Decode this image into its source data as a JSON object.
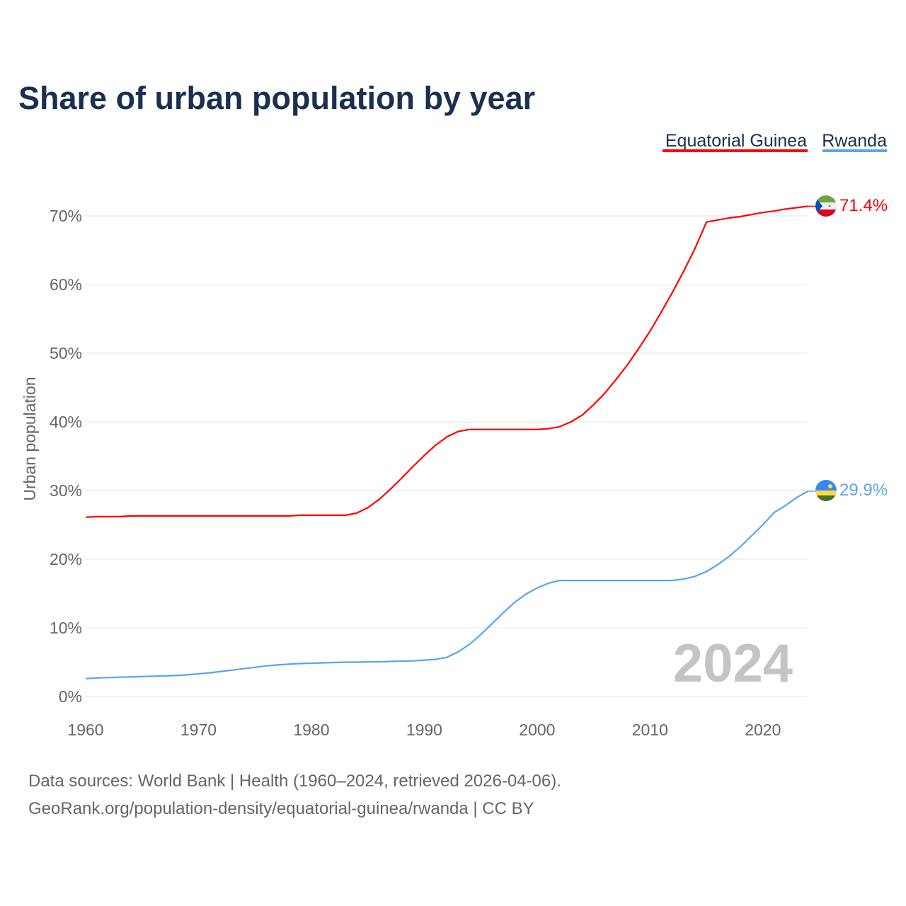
{
  "chart_data": {
    "type": "line",
    "title": "Share of urban population by year",
    "xlabel": "",
    "ylabel": "Urban population",
    "xlim": [
      1960,
      2024
    ],
    "ylim": [
      0,
      70
    ],
    "x_ticks": [
      "1960",
      "1970",
      "1980",
      "1990",
      "2000",
      "2010",
      "2020"
    ],
    "y_ticks": [
      "0%",
      "10%",
      "20%",
      "30%",
      "40%",
      "50%",
      "60%",
      "70%"
    ],
    "grid": true,
    "legend_placement": "top-right",
    "watermark": "2024",
    "x": [
      1960,
      1961,
      1962,
      1963,
      1964,
      1965,
      1966,
      1967,
      1968,
      1969,
      1970,
      1971,
      1972,
      1973,
      1974,
      1975,
      1976,
      1977,
      1978,
      1979,
      1980,
      1981,
      1982,
      1983,
      1984,
      1985,
      1986,
      1987,
      1988,
      1989,
      1990,
      1991,
      1992,
      1993,
      1994,
      1995,
      1996,
      1997,
      1998,
      1999,
      2000,
      2001,
      2002,
      2003,
      2004,
      2005,
      2006,
      2007,
      2008,
      2009,
      2010,
      2011,
      2012,
      2013,
      2014,
      2015,
      2016,
      2017,
      2018,
      2019,
      2020,
      2021,
      2022,
      2023,
      2024
    ],
    "series": [
      {
        "name": "Equatorial Guinea",
        "color": "#ff0000",
        "end_label": "71.4%",
        "values": [
          26.1,
          26.2,
          26.2,
          26.2,
          26.3,
          26.3,
          26.3,
          26.3,
          26.3,
          26.3,
          26.3,
          26.3,
          26.3,
          26.3,
          26.3,
          26.3,
          26.3,
          26.3,
          26.3,
          26.4,
          26.4,
          26.4,
          26.4,
          26.4,
          26.7,
          27.5,
          28.7,
          30.2,
          31.8,
          33.5,
          35.1,
          36.6,
          37.8,
          38.6,
          38.9,
          38.9,
          38.9,
          38.9,
          38.9,
          38.9,
          38.9,
          39.0,
          39.3,
          40.0,
          41.0,
          42.5,
          44.2,
          46.2,
          48.3,
          50.7,
          53.2,
          56.0,
          58.9,
          62.0,
          65.3,
          69.1,
          69.4,
          69.7,
          69.9,
          70.2,
          70.5,
          70.7,
          71.0,
          71.2,
          71.4
        ]
      },
      {
        "name": "Rwanda",
        "color": "#5aa5ec",
        "end_label": "29.9%",
        "values": [
          2.6,
          2.7,
          2.75,
          2.8,
          2.85,
          2.9,
          2.95,
          3.0,
          3.05,
          3.15,
          3.3,
          3.45,
          3.65,
          3.85,
          4.05,
          4.25,
          4.45,
          4.6,
          4.7,
          4.8,
          4.85,
          4.9,
          4.95,
          5.0,
          5.0,
          5.05,
          5.05,
          5.1,
          5.15,
          5.2,
          5.3,
          5.4,
          5.7,
          6.5,
          7.6,
          9.0,
          10.6,
          12.2,
          13.7,
          14.9,
          15.8,
          16.5,
          16.9,
          16.9,
          16.9,
          16.9,
          16.9,
          16.9,
          16.9,
          16.9,
          16.9,
          16.9,
          16.9,
          17.1,
          17.5,
          18.2,
          19.2,
          20.4,
          21.8,
          23.4,
          25.0,
          26.8,
          27.8,
          29.0,
          29.9
        ]
      }
    ]
  },
  "footer": {
    "line1": "Data sources: World Bank | Health (1960–2024, retrieved 2026-04-06).",
    "line2": "GeoRank.org/population-density/equatorial-guinea/rwanda | CC BY"
  }
}
